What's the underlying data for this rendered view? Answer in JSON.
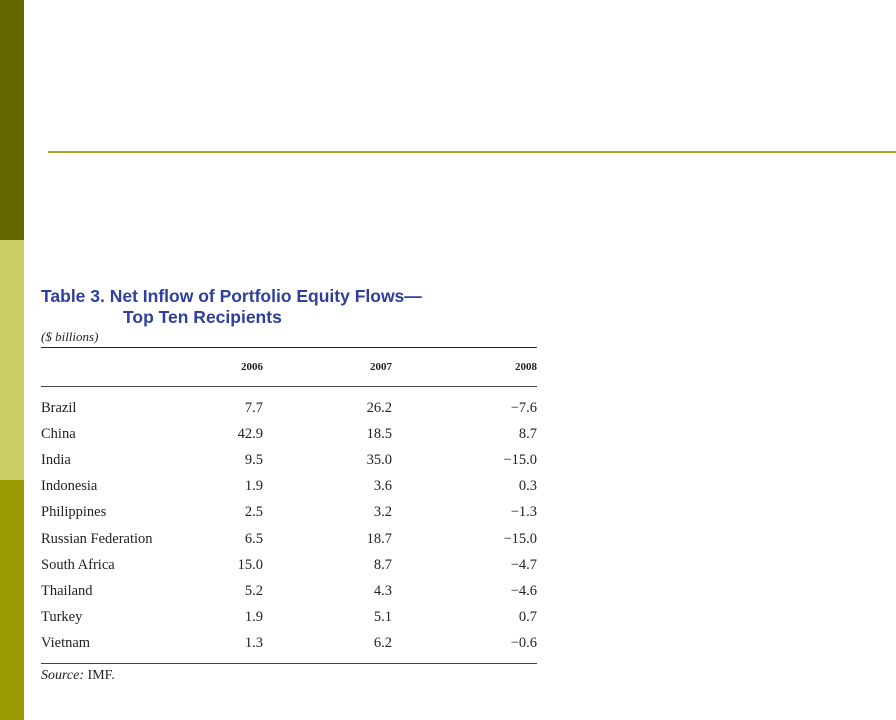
{
  "table": {
    "title_line1": "Table 3. Net Inflow of Portfolio Equity Flows—",
    "title_line2": "Top Ten Recipients",
    "units": "($ billions)",
    "columns": [
      "2006",
      "2007",
      "2008"
    ],
    "rows": [
      {
        "country": "Brazil",
        "v2006": "7.7",
        "v2007": "26.2",
        "v2008": "−7.6"
      },
      {
        "country": "China",
        "v2006": "42.9",
        "v2007": "18.5",
        "v2008": "8.7"
      },
      {
        "country": "India",
        "v2006": "9.5",
        "v2007": "35.0",
        "v2008": "−15.0"
      },
      {
        "country": "Indonesia",
        "v2006": "1.9",
        "v2007": "3.6",
        "v2008": "0.3"
      },
      {
        "country": "Philippines",
        "v2006": "2.5",
        "v2007": "3.2",
        "v2008": "−1.3"
      },
      {
        "country": "Russian Federation",
        "v2006": "6.5",
        "v2007": "18.7",
        "v2008": "−15.0"
      },
      {
        "country": "South Africa",
        "v2006": "15.0",
        "v2007": "8.7",
        "v2008": "−4.7"
      },
      {
        "country": "Thailand",
        "v2006": "5.2",
        "v2007": "4.3",
        "v2008": "−4.6"
      },
      {
        "country": "Turkey",
        "v2006": "1.9",
        "v2007": "5.1",
        "v2008": "0.7"
      },
      {
        "country": "Vietnam",
        "v2006": "1.3",
        "v2007": "6.2",
        "v2008": "−0.6"
      }
    ],
    "source_label": "Source:",
    "source_value": " IMF."
  },
  "colors": {
    "sidebar_dark": "#666600",
    "sidebar_light": "#cccc66",
    "sidebar_mid": "#999900",
    "rule": "#a6a624",
    "title": "#2e3f9e"
  }
}
